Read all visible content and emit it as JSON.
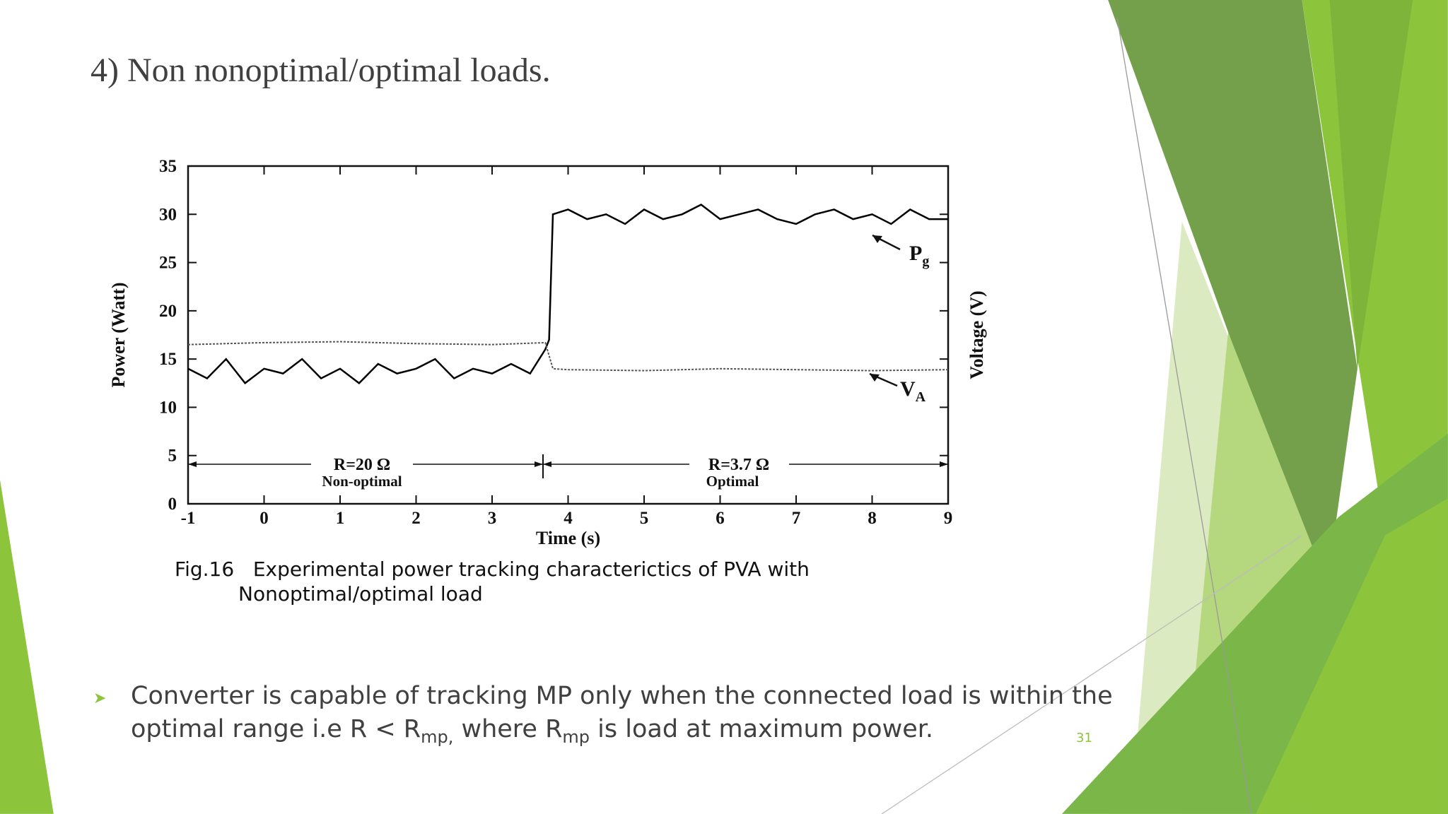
{
  "slide": {
    "title": "4) Non nonoptimal/optimal loads.",
    "caption": [
      "Fig.16   Experimental power tracking characterictics of PVA with",
      "Nonoptimal/optimal load"
    ],
    "bullet": [
      "Converter is capable of tracking MP only when the connected load is within the optimal range i.e R < R",
      "mp,",
      " where R",
      "mp",
      " is load at maximum power."
    ],
    "page_number": "31"
  },
  "chart_data": {
    "type": "line",
    "xlabel": "Time (s)",
    "ylabel": "Power (Watt)",
    "y2label": "Voltage (V)",
    "xlim": [
      -1,
      9
    ],
    "xticks": [
      -1,
      0,
      1,
      2,
      3,
      4,
      5,
      6,
      7,
      8,
      9
    ],
    "ylim": [
      0,
      35
    ],
    "yticks": [
      0,
      5,
      10,
      15,
      20,
      25,
      30,
      35
    ],
    "series": [
      {
        "name": [
          "P",
          "g"
        ],
        "color": "#000000",
        "x": [
          -1,
          -0.75,
          -0.5,
          -0.25,
          0,
          0.25,
          0.5,
          0.75,
          1,
          1.25,
          1.5,
          1.75,
          2,
          2.25,
          2.5,
          2.75,
          3,
          3.25,
          3.5,
          3.7,
          3.75,
          3.8,
          4,
          4.25,
          4.5,
          4.75,
          5,
          5.25,
          5.5,
          5.75,
          6,
          6.25,
          6.5,
          6.75,
          7,
          7.25,
          7.5,
          7.75,
          8,
          8.25,
          8.5,
          8.75,
          9
        ],
        "values": [
          14,
          13,
          15,
          12.5,
          14,
          13.5,
          15,
          13,
          14,
          12.5,
          14.5,
          13.5,
          14,
          15,
          13,
          14,
          13.5,
          14.5,
          13.5,
          16,
          17,
          30,
          30.5,
          29.5,
          30,
          29,
          30.5,
          29.5,
          30,
          31,
          29.5,
          30,
          30.5,
          29.5,
          29,
          30,
          30.5,
          29.5,
          30,
          29,
          30.5,
          29.5,
          29.5
        ]
      },
      {
        "name": [
          "V",
          "A"
        ],
        "color": "#555555",
        "dashed": true,
        "x": [
          -1,
          0,
          1,
          2,
          3,
          3.7,
          3.8,
          4,
          5,
          6,
          7,
          8,
          9
        ],
        "values": [
          16.5,
          16.7,
          16.8,
          16.6,
          16.5,
          16.7,
          14,
          13.9,
          13.8,
          14,
          13.9,
          13.8,
          13.9
        ]
      }
    ],
    "annotations": [
      "R=20 Ω",
      "Non-optimal",
      "R=3.7 Ω",
      "Optimal"
    ]
  }
}
